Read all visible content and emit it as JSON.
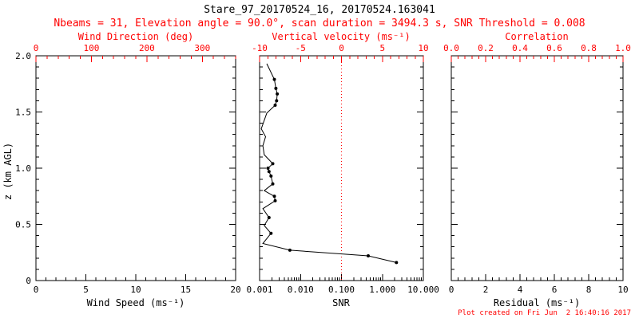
{
  "title": "Stare_97_20170524_16, 20170524.163041",
  "subtitle": "Nbeams = 31, Elevation angle = 90.0°, scan duration = 3494.3 s, SNR Threshold = 0.008",
  "footer": "Plot created on Fri Jun  2 16:40:16 2017",
  "colors": {
    "foreground": "#000000",
    "secondary_axis": "#ff0000",
    "background": "#ffffff"
  },
  "y_axis": {
    "label": "z (km AGL)",
    "range": [
      0,
      2
    ],
    "tick_values": [
      0,
      0.5,
      1.0,
      1.5,
      2.0
    ],
    "tick_labels": [
      "0",
      "0.5",
      "1.0",
      "1.5",
      "2.0"
    ]
  },
  "chart_data": [
    {
      "type": "line",
      "id": "wind",
      "x1": {
        "label": "Wind Speed (ms⁻¹)",
        "lim": [
          0,
          20
        ],
        "tick_values": [
          0,
          5,
          10,
          15,
          20
        ],
        "tick_labels": [
          "0",
          "5",
          "10",
          "15",
          "20"
        ]
      },
      "x2": {
        "label": "Wind Direction (deg)",
        "lim": [
          0,
          360
        ],
        "tick_values": [
          0,
          100,
          200,
          300
        ],
        "tick_labels": [
          "0",
          "100",
          "200",
          "300"
        ]
      },
      "ylim": [
        0,
        2
      ],
      "series": []
    },
    {
      "type": "line",
      "id": "snr",
      "x1": {
        "label": "SNR",
        "scale": "log",
        "lim": [
          0.001,
          10
        ],
        "tick_values": [
          0.001,
          0.01,
          0.1,
          1,
          10
        ],
        "tick_labels": [
          "0.001",
          "0.010",
          "0.100",
          "1.000",
          "10.000"
        ]
      },
      "x2": {
        "label": "Vertical velocity (ms⁻¹)",
        "lim": [
          -10,
          10
        ],
        "tick_values": [
          -10,
          -5,
          0,
          5,
          10
        ],
        "tick_labels": [
          "-10",
          "-5",
          "0",
          "5",
          "10"
        ]
      },
      "ylim": [
        0,
        2
      ],
      "reference_line": {
        "axis": "x2",
        "value": 0,
        "style": "dotted",
        "color": "#ff0000"
      },
      "point_format": [
        "snr",
        "z_km",
        "marker"
      ],
      "series": [
        {
          "name": "snr-profile",
          "points": [
            [
              0.0015,
              1.93,
              0
            ],
            [
              0.0023,
              1.79,
              1
            ],
            [
              0.0025,
              1.71,
              1
            ],
            [
              0.0027,
              1.66,
              1
            ],
            [
              0.0026,
              1.6,
              1
            ],
            [
              0.0024,
              1.56,
              1
            ],
            [
              0.0015,
              1.49,
              0
            ],
            [
              0.0011,
              1.35,
              0
            ],
            [
              0.0014,
              1.28,
              0
            ],
            [
              0.0012,
              1.2,
              0
            ],
            [
              0.0013,
              1.12,
              0
            ],
            [
              0.0021,
              1.04,
              1
            ],
            [
              0.0016,
              1.0,
              1
            ],
            [
              0.0017,
              0.97,
              1
            ],
            [
              0.0019,
              0.93,
              1
            ],
            [
              0.0021,
              0.86,
              1
            ],
            [
              0.0013,
              0.8,
              0
            ],
            [
              0.0023,
              0.75,
              1
            ],
            [
              0.0024,
              0.71,
              1
            ],
            [
              0.0012,
              0.64,
              0
            ],
            [
              0.0017,
              0.56,
              1
            ],
            [
              0.0013,
              0.49,
              0
            ],
            [
              0.0019,
              0.42,
              1
            ],
            [
              0.0012,
              0.33,
              0
            ],
            [
              0.0055,
              0.27,
              1
            ],
            [
              0.45,
              0.22,
              1
            ],
            [
              2.2,
              0.16,
              1
            ]
          ]
        }
      ]
    },
    {
      "type": "line",
      "id": "residual",
      "x1": {
        "label": "Residual (ms⁻¹)",
        "lim": [
          0,
          10
        ],
        "tick_values": [
          0,
          2,
          4,
          6,
          8,
          10
        ],
        "tick_labels": [
          "0",
          "2",
          "4",
          "6",
          "8",
          "10"
        ]
      },
      "x2": {
        "label": "Correlation",
        "lim": [
          0,
          1
        ],
        "tick_values": [
          0,
          0.2,
          0.4,
          0.6,
          0.8,
          1.0
        ],
        "tick_labels": [
          "0.0",
          "0.2",
          "0.4",
          "0.6",
          "0.8",
          "1.0"
        ]
      },
      "ylim": [
        0,
        2
      ],
      "series": []
    }
  ]
}
